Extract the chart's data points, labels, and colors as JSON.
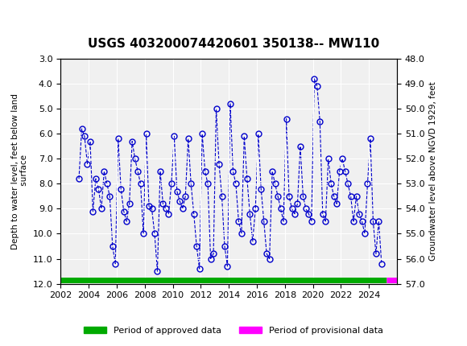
{
  "title": "USGS 403200074420601 350138-- MW110",
  "ylabel_left": "Depth to water level, feet below land\n surface",
  "ylabel_right": "Groundwater level above NGVD 1929, feet",
  "ylim_left": [
    3.0,
    12.0
  ],
  "ylim_right": [
    48.0,
    57.0
  ],
  "xlim": [
    2002,
    2026
  ],
  "yticks_left": [
    3.0,
    4.0,
    5.0,
    6.0,
    7.0,
    8.0,
    9.0,
    10.0,
    11.0,
    12.0
  ],
  "yticks_right": [
    48.0,
    49.0,
    50.0,
    51.0,
    52.0,
    53.0,
    54.0,
    55.0,
    56.0,
    57.0
  ],
  "xticks": [
    2002,
    2004,
    2006,
    2008,
    2010,
    2012,
    2014,
    2016,
    2018,
    2020,
    2022,
    2024
  ],
  "header_color": "#1a6035",
  "data_color": "#0000cc",
  "approved_color": "#00aa00",
  "provisional_color": "#ff00ff",
  "background_color": "#ffffff",
  "plot_bg_color": "#f0f0f0",
  "data_x": [
    2003.3,
    2003.5,
    2003.7,
    2003.9,
    2004.1,
    2004.3,
    2004.5,
    2004.7,
    2004.9,
    2005.1,
    2005.3,
    2005.5,
    2005.7,
    2005.9,
    2006.1,
    2006.3,
    2006.5,
    2006.7,
    2006.9,
    2007.1,
    2007.3,
    2007.5,
    2007.7,
    2007.9,
    2008.1,
    2008.3,
    2008.5,
    2008.7,
    2008.9,
    2009.1,
    2009.3,
    2009.5,
    2009.7,
    2009.9,
    2010.1,
    2010.3,
    2010.5,
    2010.7,
    2010.9,
    2011.1,
    2011.3,
    2011.5,
    2011.7,
    2011.9,
    2012.1,
    2012.3,
    2012.5,
    2012.7,
    2012.9,
    2013.1,
    2013.3,
    2013.5,
    2013.7,
    2013.9,
    2014.1,
    2014.3,
    2014.5,
    2014.7,
    2014.9,
    2015.1,
    2015.3,
    2015.5,
    2015.7,
    2015.9,
    2016.1,
    2016.3,
    2016.5,
    2016.7,
    2016.9,
    2017.1,
    2017.3,
    2017.5,
    2017.7,
    2017.9,
    2018.1,
    2018.3,
    2018.5,
    2018.7,
    2018.9,
    2019.1,
    2019.3,
    2019.5,
    2019.7,
    2019.9,
    2020.1,
    2020.3,
    2020.5,
    2020.7,
    2020.9,
    2021.1,
    2021.3,
    2021.5,
    2021.7,
    2021.9,
    2022.1,
    2022.3,
    2022.5,
    2022.7,
    2022.9,
    2023.1,
    2023.3,
    2023.5,
    2023.7,
    2023.9,
    2024.1,
    2024.3,
    2024.5,
    2024.7,
    2024.9
  ],
  "data_y": [
    7.8,
    5.8,
    6.1,
    7.2,
    6.3,
    9.1,
    7.8,
    8.2,
    9.0,
    7.5,
    8.0,
    8.5,
    10.5,
    11.2,
    6.2,
    8.2,
    9.1,
    9.5,
    8.8,
    6.3,
    7.0,
    7.5,
    8.0,
    10.0,
    6.0,
    8.9,
    9.0,
    10.0,
    11.5,
    7.5,
    8.8,
    9.0,
    9.2,
    8.0,
    6.1,
    8.3,
    8.7,
    9.0,
    8.5,
    6.2,
    8.0,
    9.2,
    10.5,
    11.4,
    6.0,
    7.5,
    8.0,
    11.0,
    10.8,
    5.0,
    7.2,
    8.5,
    10.5,
    11.3,
    4.8,
    7.5,
    8.0,
    9.5,
    10.0,
    6.1,
    7.8,
    9.2,
    10.3,
    9.0,
    6.0,
    8.2,
    9.5,
    10.8,
    11.0,
    7.5,
    8.0,
    8.5,
    9.0,
    9.5,
    5.4,
    8.5,
    9.0,
    9.2,
    8.8,
    6.5,
    8.5,
    9.0,
    9.2,
    9.5,
    3.8,
    4.1,
    5.5,
    9.2,
    9.5,
    7.0,
    8.0,
    8.5,
    8.8,
    7.5,
    7.0,
    7.5,
    8.0,
    8.5,
    9.5,
    8.5,
    9.2,
    9.5,
    10.0,
    8.0,
    6.2,
    9.5,
    10.8,
    9.5,
    11.2
  ]
}
